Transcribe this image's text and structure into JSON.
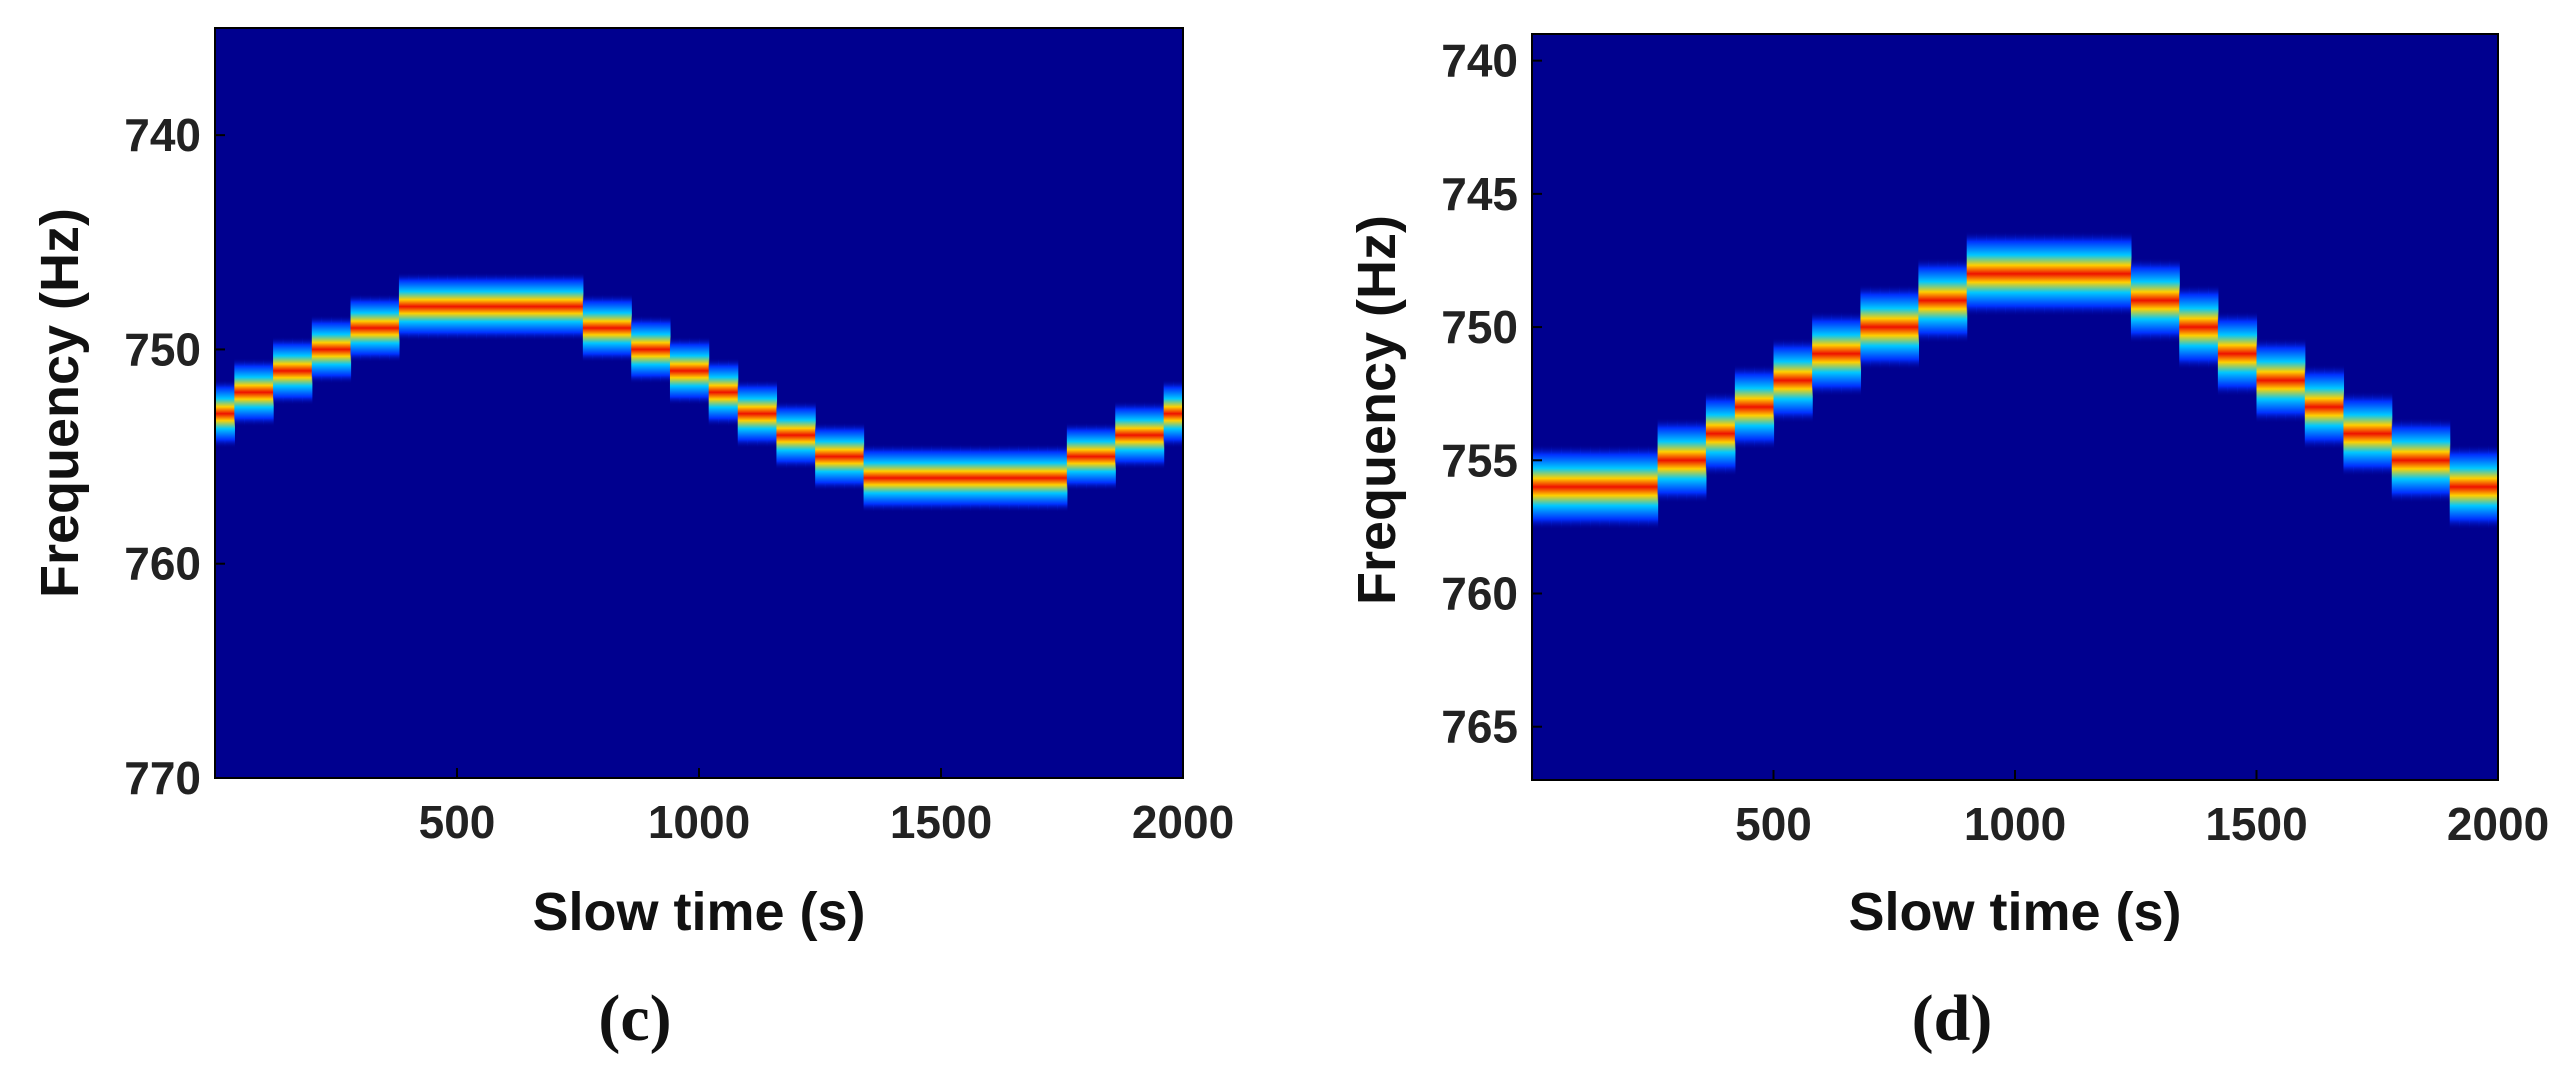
{
  "colors": {
    "background": "#00008F",
    "axis": "#000000"
  },
  "colormap": "jet",
  "chart_data": [
    {
      "type": "heatmap",
      "panel": "(c)",
      "description": "Time-frequency ridge, sinusoidal Doppler curve",
      "xlabel": "Slow time (s)",
      "ylabel": "Frequency (Hz)",
      "xlim": [
        0,
        2000
      ],
      "ylim": [
        770,
        735
      ],
      "y_reversed": true,
      "xticks": [
        500,
        1000,
        1500,
        2000
      ],
      "yticks": [
        740,
        750,
        760,
        770
      ],
      "ridge": {
        "x": [
          0,
          150,
          300,
          450,
          600,
          750,
          900,
          1050,
          1200,
          1350,
          1500,
          1600,
          1750,
          1900,
          2000
        ],
        "y": [
          753.0,
          751.0,
          749.2,
          748.0,
          748.0,
          748.3,
          750.0,
          752.0,
          754.0,
          755.5,
          756.0,
          756.0,
          755.5,
          754.0,
          753.0
        ]
      }
    },
    {
      "type": "heatmap",
      "panel": "(d)",
      "description": "Time-frequency ridge, rising then falling Doppler curve",
      "xlabel": "Slow time (s)",
      "ylabel": "Frequency (Hz)",
      "xlim": [
        0,
        2000
      ],
      "ylim": [
        767,
        739
      ],
      "y_reversed": true,
      "xticks": [
        500,
        1000,
        1500,
        2000
      ],
      "yticks": [
        740,
        745,
        750,
        755,
        760,
        765
      ],
      "ridge": {
        "x": [
          0,
          200,
          350,
          500,
          650,
          800,
          950,
          1100,
          1250,
          1400,
          1550,
          1700,
          1850,
          2000
        ],
        "y": [
          756.0,
          756.0,
          754.5,
          752.5,
          750.8,
          749.5,
          748.0,
          748.0,
          748.5,
          750.2,
          752.0,
          753.8,
          755.2,
          756.0
        ]
      }
    }
  ]
}
